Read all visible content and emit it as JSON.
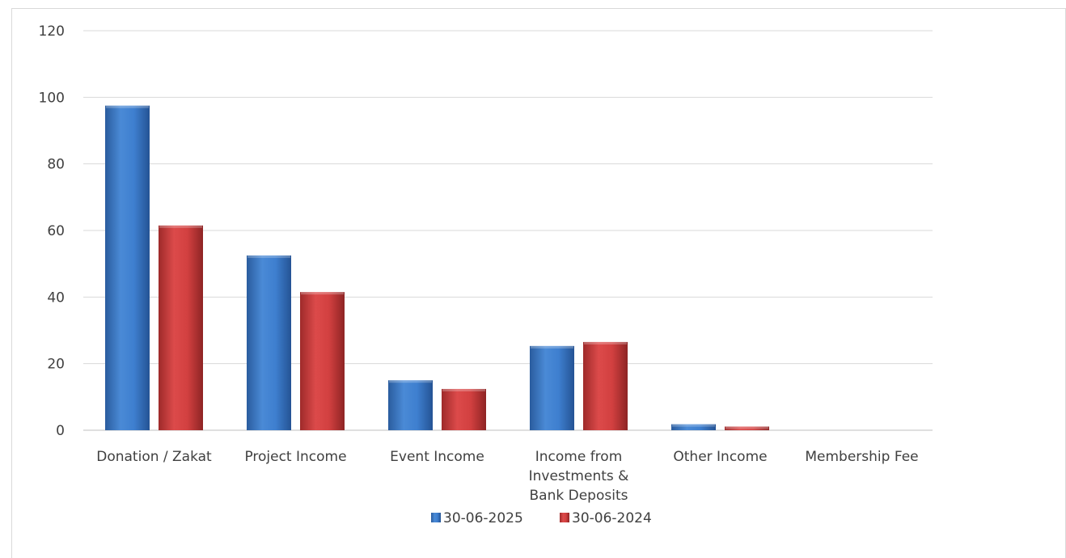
{
  "chart_data": {
    "type": "bar",
    "title": "",
    "xlabel": "",
    "ylabel": "",
    "ylim": [
      0,
      120
    ],
    "yticks": [
      0,
      20,
      40,
      60,
      80,
      100,
      120
    ],
    "grid": true,
    "legend_position": "bottom",
    "categories": [
      [
        "Donation / Zakat"
      ],
      [
        "Project Income"
      ],
      [
        "Event Income"
      ],
      [
        "Income from",
        "Investments &",
        "Bank Deposits"
      ],
      [
        "Other Income"
      ],
      [
        "Membership Fee"
      ]
    ],
    "series": [
      {
        "name": "30-06-2025",
        "color": "#3a78c8",
        "values": [
          97.5,
          52.5,
          15.0,
          25.3,
          1.8,
          0
        ]
      },
      {
        "name": "30-06-2024",
        "color": "#c83a3a",
        "values": [
          61.5,
          41.5,
          12.4,
          26.5,
          1.1,
          0
        ]
      }
    ]
  }
}
